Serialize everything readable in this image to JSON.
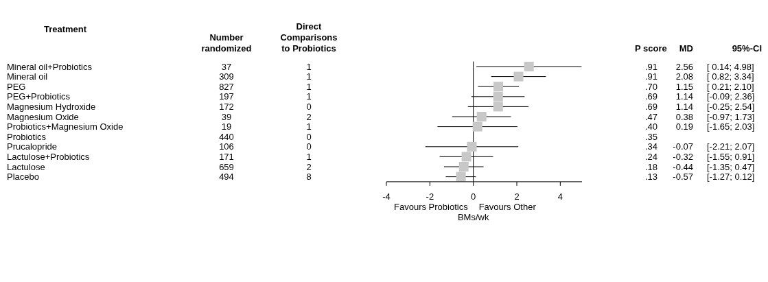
{
  "chart_data": [
    {
      "type": "other",
      "title": "Treatment",
      "annotations": [
        "Mineral oil+Probiotics",
        "Mineral oil",
        "PEG",
        "PEG+Probiotics",
        "Magnesium Hydroxide",
        "Magnesium Oxide",
        "Probiotics+Magnesium Oxide",
        "Probiotics",
        "Prucalopride",
        "Lactulose+Probiotics",
        "Lactulose",
        "Placebo"
      ]
    },
    {
      "type": "scatter",
      "xlabel": "BMs/wk",
      "marker": "square",
      "orientation": "horizontal",
      "categories": [
        null,
        null,
        null,
        null,
        null,
        null,
        null,
        null,
        null,
        null,
        null,
        null
      ],
      "color": "#c8c8c8",
      "values": [
        2.56,
        2.08,
        1.15,
        1.14,
        1.14,
        0.38,
        0.19,
        null,
        -0.07,
        -0.32,
        -0.44,
        -0.57
      ],
      "errors": [
        [
          0.14,
          4.98
        ],
        [
          0.82,
          3.34
        ],
        [
          0.21,
          2.1
        ],
        [
          -0.09,
          2.36
        ],
        [
          -0.25,
          2.54
        ],
        [
          -0.97,
          1.73
        ],
        [
          -1.65,
          2.03
        ],
        null,
        [
          -2.21,
          2.07
        ],
        [
          -1.55,
          0.91
        ],
        [
          -1.35,
          0.47
        ],
        [
          -1.27,
          0.12
        ]
      ],
      "xlim": [
        -4,
        5
      ],
      "xticks": [
        -4,
        -2,
        0,
        2,
        4
      ],
      "ref_lines": [
        {
          "axis": "x",
          "value": 0,
          "color": "#000000"
        }
      ],
      "annotations": [
        "Favours Probiotics",
        "Favours Other"
      ]
    },
    {
      "type": "other",
      "title": "Number randomized",
      "annotations": [
        "37",
        "309",
        "827",
        "197",
        "172",
        "39",
        "19",
        "440",
        "106",
        "171",
        "659",
        "494"
      ]
    },
    {
      "type": "other",
      "title": "Direct Comparisons to Probiotics",
      "annotations": [
        "1",
        "1",
        "1",
        "1",
        "0",
        "2",
        "1",
        "0",
        "0",
        "1",
        "2",
        "8"
      ]
    },
    {
      "type": "other",
      "title": "P score",
      "annotations": [
        ".91",
        ".91",
        ".70",
        ".69",
        ".69",
        ".47",
        ".40",
        ".35",
        ".34",
        ".24",
        ".18",
        ".13"
      ]
    },
    {
      "type": "other",
      "title": "MD",
      "annotations": [
        "2.56",
        "2.08",
        "1.15",
        "1.14",
        "1.14",
        "0.38",
        "0.19",
        null,
        "-0.07",
        "-0.32",
        "-0.44",
        "-0.57"
      ]
    },
    {
      "type": "other",
      "title": "95%-CI",
      "annotations": [
        "[ 0.14; 4.98]",
        "[ 0.82; 3.34]",
        "[ 0.21; 2.10]",
        "[-0.09; 2.36]",
        "[-0.25; 2.54]",
        "[-0.97; 1.73]",
        "[-1.65; 2.03]",
        null,
        "[-2.21; 2.07]",
        "[-1.55; 0.91]",
        "[-1.35; 0.47]",
        "[-1.27; 0.12]"
      ]
    }
  ]
}
